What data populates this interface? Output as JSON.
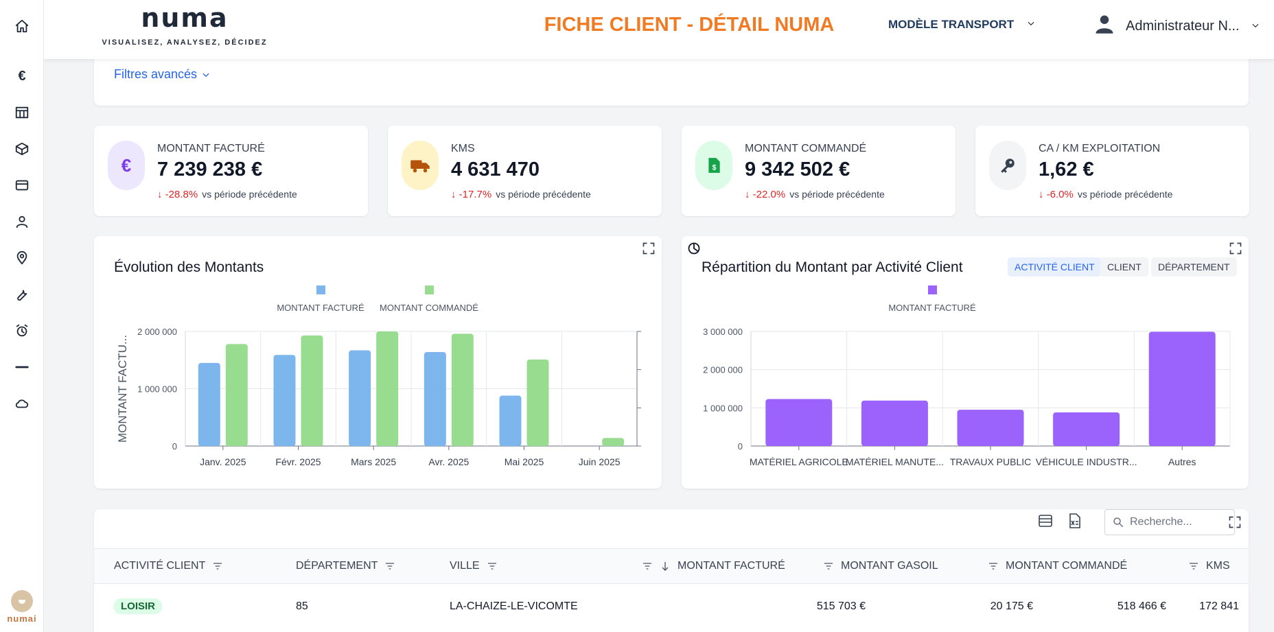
{
  "header": {
    "logo_word": "numa",
    "logo_tagline": "VISUALISEZ, ANALYSEZ, DÉCIDEZ",
    "title": "FICHE CLIENT - DÉTAIL NUMA",
    "model_select": "MODÈLE TRANSPORT",
    "user_name": "Administrateur N..."
  },
  "sidebar": {
    "items": [
      "home-icon",
      "euro-icon",
      "table-icon",
      "box-icon",
      "card-icon",
      "user-icon",
      "location-icon",
      "wrench-icon",
      "alarm-icon",
      "minus-icon",
      "cloud-icon"
    ],
    "euro_glyph": "€",
    "mascot_label": "numai"
  },
  "filters": {
    "label": "Filtres avancés"
  },
  "kpis": [
    {
      "label": "MONTANT FACTURÉ",
      "value": "7 239 238 €",
      "trend": "-28.8%",
      "vs": "vs période précédente",
      "badge_glyph": "€",
      "badge_bg": "#ede7fe",
      "badge_color": "#7c3aed"
    },
    {
      "label": "KMS",
      "value": "4 631 470",
      "trend": "-17.7%",
      "vs": "vs période précédente",
      "badge_bg": "#fef3c7",
      "badge_color": "#b45309"
    },
    {
      "label": "MONTANT COMMANDÉ",
      "value": "9 342 502 €",
      "trend": "-22.0%",
      "vs": "vs période précédente",
      "badge_bg": "#dcfce7",
      "badge_color": "#16a34a"
    },
    {
      "label": "CA / KM EXPLOITATION",
      "value": "1,62 €",
      "trend": "-6.0%",
      "vs": "vs période précédente",
      "badge_bg": "#f3f4f6",
      "badge_color": "#374151"
    }
  ],
  "charts": {
    "evolution": {
      "title": "Évolution des Montants",
      "legend": [
        "MONTANT FACTURÉ",
        "MONTANT COMMANDÉ"
      ]
    },
    "repartition": {
      "title": "Répartition du Montant par Activité Client",
      "legend": [
        "MONTANT FACTURÉ"
      ],
      "chips": [
        "ACTIVITÉ CLIENT",
        "CLIENT",
        "DÉPARTEMENT"
      ]
    }
  },
  "chart_data": [
    {
      "type": "bar",
      "title": "Évolution des Montants",
      "categories": [
        "Janv. 2025",
        "Févr. 2025",
        "Mars 2025",
        "Avr. 2025",
        "Mai 2025",
        "Juin 2025"
      ],
      "series": [
        {
          "name": "MONTANT FACTURÉ",
          "color": "#7cb6ec",
          "values": [
            1450000,
            1590000,
            1670000,
            1640000,
            880000,
            0
          ]
        },
        {
          "name": "MONTANT COMMANDÉ",
          "color": "#98dc8f",
          "values": [
            1780000,
            1930000,
            2000000,
            1960000,
            1510000,
            140000
          ]
        }
      ],
      "ylabel": "MONTANT FACTU...",
      "ylim": [
        0,
        2000000
      ],
      "yticks": [
        0,
        1000000,
        2000000
      ],
      "ytick_labels": [
        "0",
        "1 000 000",
        "2 000 000"
      ],
      "grid": true,
      "legend": "top"
    },
    {
      "type": "bar",
      "title": "Répartition du Montant par Activité Client",
      "categories": [
        "MATÉRIEL AGRICOLE",
        "MATÉRIEL MANUTE...",
        "TRAVAUX PUBLIC",
        "VÉHICULE INDUSTR...",
        "Autres"
      ],
      "series": [
        {
          "name": "MONTANT FACTURÉ",
          "color": "#9b63fc",
          "values": [
            1230000,
            1190000,
            950000,
            880000,
            2990000
          ]
        }
      ],
      "ylim": [
        0,
        3000000
      ],
      "yticks": [
        0,
        1000000,
        2000000,
        3000000
      ],
      "ytick_labels": [
        "0",
        "1 000 000",
        "2 000 000",
        "3 000 000"
      ],
      "grid": true,
      "legend": "top"
    }
  ],
  "table": {
    "search_placeholder": "Recherche...",
    "columns": [
      "ACTIVITÉ CLIENT",
      "DÉPARTEMENT",
      "VILLE",
      "MONTANT FACTURÉ",
      "MONTANT GASOIL",
      "MONTANT COMMANDÉ",
      "KMS"
    ],
    "rows": [
      {
        "activite": "LOISIR",
        "departement": "85",
        "ville": "LA-CHAIZE-LE-VICOMTE",
        "montant_facture": "515 703 €",
        "montant_gasoil": "20 175 €",
        "montant_commande": "518 466 €",
        "kms": "172 841"
      }
    ]
  }
}
